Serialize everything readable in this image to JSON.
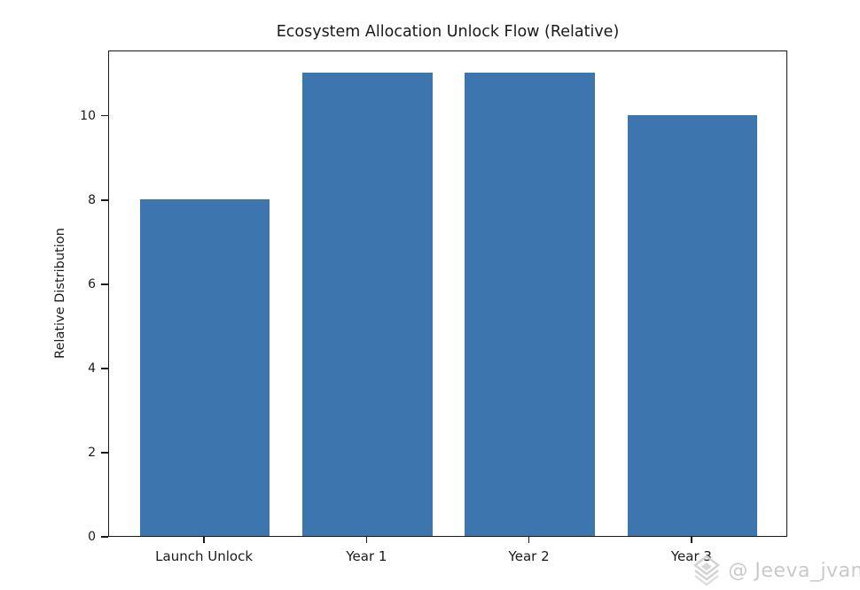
{
  "chart_data": {
    "type": "bar",
    "title": "Ecosystem Allocation Unlock Flow (Relative)",
    "categories": [
      "Launch Unlock",
      "Year 1",
      "Year 2",
      "Year 3"
    ],
    "values": [
      8,
      11,
      11,
      10
    ],
    "xlabel": "",
    "ylabel": "Relative Distribution",
    "yticks": [
      0,
      2,
      4,
      6,
      8,
      10
    ],
    "ylim": [
      0,
      11.55
    ],
    "xlim": [
      -0.59,
      3.59
    ],
    "bar_width": 0.8,
    "bar_color": "#3D76AE",
    "axis_color": "#1A1A1A",
    "background": "#FFFFFF",
    "grid": false,
    "legend": null
  },
  "watermark": {
    "text": "@ Jeeva_jvan",
    "icon": "diamond-logo-icon",
    "color": "#C9C9C9"
  }
}
